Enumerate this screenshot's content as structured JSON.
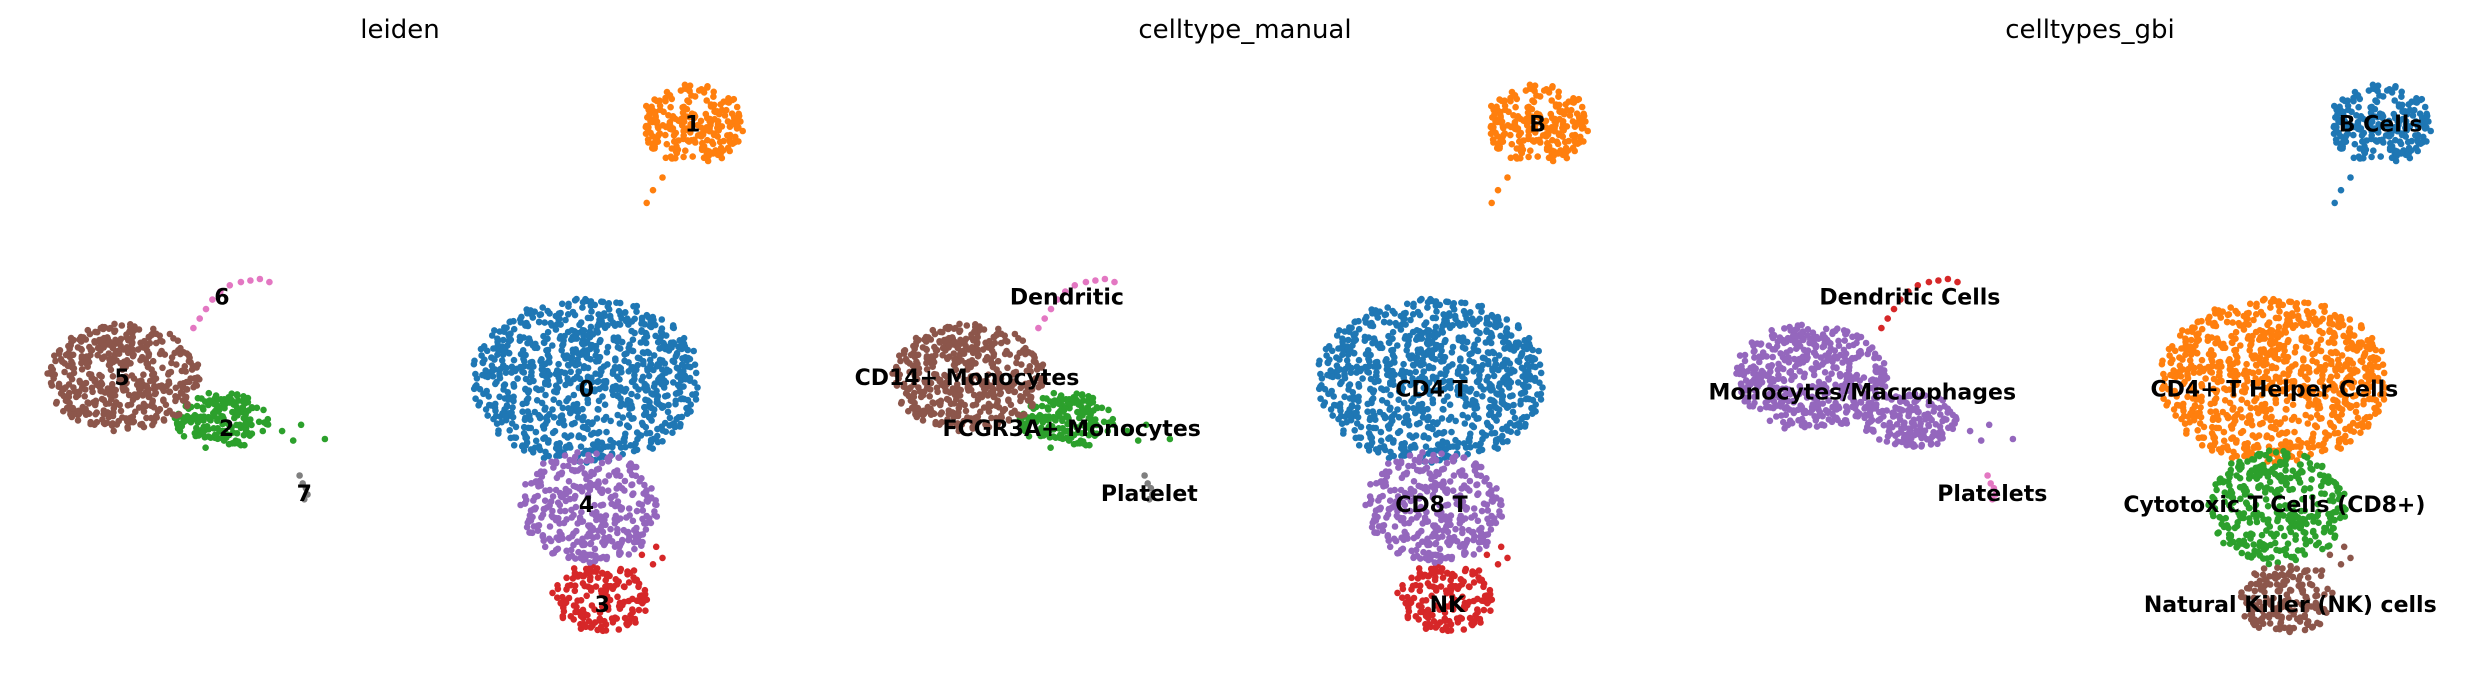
{
  "chart_data": [
    {
      "type": "scatter",
      "title": "leiden",
      "xlabel": "",
      "ylabel": "",
      "grid": false,
      "axes_visible": false,
      "clusters": [
        {
          "label": "0",
          "color": "#1f77b4",
          "label_pos": [
            370,
            245
          ],
          "blobs": [
            [
              370,
              240,
              72,
              52,
              900
            ]
          ],
          "outliers": []
        },
        {
          "label": "1",
          "color": "#ff7f0e",
          "label_pos": [
            437,
            78
          ],
          "blobs": [
            [
              437,
              78,
              32,
              25,
              230
            ]
          ],
          "outliers": [
            [
              424,
              100
            ],
            [
              418,
              112
            ],
            [
              412,
              120
            ],
            [
              408,
              128
            ]
          ]
        },
        {
          "label": "2",
          "color": "#2ca02c",
          "label_pos": [
            143,
            270
          ],
          "blobs": [
            [
              140,
              265,
              30,
              18,
              170
            ]
          ],
          "outliers": [
            [
              178,
              272
            ],
            [
              185,
              278
            ],
            [
              190,
              268
            ],
            [
              205,
              277
            ]
          ]
        },
        {
          "label": "3",
          "color": "#d62728",
          "label_pos": [
            380,
            381
          ],
          "blobs": [
            [
              378,
              378,
              30,
              22,
              170
            ]
          ],
          "outliers": [
            [
              405,
              350
            ],
            [
              412,
              356
            ],
            [
              418,
              352
            ],
            [
              400,
              360
            ],
            [
              414,
              345
            ]
          ]
        },
        {
          "label": "4",
          "color": "#9467bd",
          "label_pos": [
            370,
            318
          ],
          "blobs": [
            [
              372,
              320,
              43,
              36,
              350
            ]
          ],
          "outliers": []
        },
        {
          "label": "5",
          "color": "#8c564b",
          "label_pos": [
            77,
            238
          ],
          "blobs": [
            [
              78,
              238,
              48,
              34,
              460
            ]
          ],
          "outliers": []
        },
        {
          "label": "6",
          "color": "#e377c2",
          "label_pos": [
            140,
            187
          ],
          "blobs": [],
          "outliers": [
            [
              122,
              207
            ],
            [
              126,
              201
            ],
            [
              130,
              195
            ],
            [
              134,
              189
            ],
            [
              139,
              184
            ],
            [
              145,
              180
            ],
            [
              152,
              178
            ],
            [
              158,
              177
            ],
            [
              164,
              176
            ],
            [
              170,
              178
            ]
          ]
        },
        {
          "label": "7",
          "color": "#7f7f7f",
          "label_pos": [
            192,
            311
          ],
          "blobs": [],
          "outliers": [
            [
              189,
              300
            ],
            [
              191,
              305
            ],
            [
              193,
              308
            ],
            [
              194,
              312
            ],
            [
              192,
              315
            ]
          ]
        }
      ]
    },
    {
      "type": "scatter",
      "title": "celltype_manual",
      "xlabel": "",
      "ylabel": "",
      "grid": false,
      "axes_visible": false,
      "clusters": [
        {
          "label": "CD4 T",
          "color": "#1f77b4",
          "label_pos": [
            370,
            245
          ],
          "blobs": [
            [
              370,
              240,
              72,
              52,
              900
            ]
          ],
          "outliers": []
        },
        {
          "label": "B",
          "color": "#ff7f0e",
          "label_pos": [
            437,
            78
          ],
          "blobs": [
            [
              437,
              78,
              32,
              25,
              230
            ]
          ],
          "outliers": [
            [
              424,
              100
            ],
            [
              418,
              112
            ],
            [
              412,
              120
            ],
            [
              408,
              128
            ]
          ]
        },
        {
          "label": "FCGR3A+ Monocytes",
          "color": "#2ca02c",
          "label_pos": [
            143,
            270
          ],
          "blobs": [
            [
              140,
              265,
              30,
              18,
              170
            ]
          ],
          "outliers": [
            [
              178,
              272
            ],
            [
              185,
              278
            ],
            [
              190,
              268
            ],
            [
              205,
              277
            ]
          ]
        },
        {
          "label": "NK",
          "color": "#d62728",
          "label_pos": [
            380,
            381
          ],
          "blobs": [
            [
              378,
              378,
              30,
              22,
              170
            ]
          ],
          "outliers": [
            [
              405,
              350
            ],
            [
              412,
              356
            ],
            [
              418,
              352
            ],
            [
              400,
              360
            ],
            [
              414,
              345
            ]
          ]
        },
        {
          "label": "CD8 T",
          "color": "#9467bd",
          "label_pos": [
            370,
            318
          ],
          "blobs": [
            [
              372,
              320,
              43,
              36,
              350
            ]
          ],
          "outliers": []
        },
        {
          "label": "CD14+ Monocytes",
          "color": "#8c564b",
          "label_pos": [
            77,
            238
          ],
          "blobs": [
            [
              78,
              238,
              48,
              34,
              460
            ]
          ],
          "outliers": []
        },
        {
          "label": "Dendritic",
          "color": "#e377c2",
          "label_pos": [
            140,
            187
          ],
          "blobs": [],
          "outliers": [
            [
              122,
              207
            ],
            [
              126,
              201
            ],
            [
              130,
              195
            ],
            [
              134,
              189
            ],
            [
              139,
              184
            ],
            [
              145,
              180
            ],
            [
              152,
              178
            ],
            [
              158,
              177
            ],
            [
              164,
              176
            ],
            [
              170,
              178
            ]
          ]
        },
        {
          "label": "Platelet",
          "color": "#7f7f7f",
          "label_pos": [
            192,
            311
          ],
          "blobs": [],
          "outliers": [
            [
              189,
              300
            ],
            [
              191,
              305
            ],
            [
              193,
              308
            ],
            [
              194,
              312
            ],
            [
              192,
              315
            ]
          ]
        }
      ]
    },
    {
      "type": "scatter",
      "title": "celltypes_gbi",
      "xlabel": "",
      "ylabel": "",
      "grid": false,
      "axes_visible": false,
      "clusters": [
        {
          "label": "CD4+ T Helper Cells",
          "color": "#ff7f0e",
          "label_pos": [
            370,
            245
          ],
          "blobs": [
            [
              370,
              240,
              72,
              52,
              900
            ]
          ],
          "outliers": []
        },
        {
          "label": "B Cells",
          "color": "#1f77b4",
          "label_pos": [
            437,
            78
          ],
          "blobs": [
            [
              437,
              78,
              32,
              25,
              230
            ]
          ],
          "outliers": [
            [
              424,
              100
            ],
            [
              418,
              112
            ],
            [
              412,
              120
            ],
            [
              408,
              128
            ]
          ]
        },
        {
          "label": "Monocytes/Macrophages",
          "color": "#9467bd",
          "label_pos": [
            110,
            247
          ],
          "blobs": [
            [
              78,
              238,
              48,
              34,
              460
            ],
            [
              140,
              265,
              30,
              18,
              170
            ]
          ],
          "outliers": [
            [
              178,
              272
            ],
            [
              185,
              278
            ],
            [
              190,
              268
            ],
            [
              205,
              277
            ]
          ]
        },
        {
          "label": "Cytotoxic T Cells (CD8+)",
          "color": "#2ca02c",
          "label_pos": [
            370,
            318
          ],
          "blobs": [
            [
              372,
              320,
              43,
              36,
              350
            ]
          ],
          "outliers": []
        },
        {
          "label": "Natural Killer (NK) cells",
          "color": "#8c564b",
          "label_pos": [
            380,
            381
          ],
          "blobs": [
            [
              378,
              378,
              30,
              22,
              170
            ]
          ],
          "outliers": [
            [
              405,
              350
            ],
            [
              412,
              356
            ],
            [
              418,
              352
            ],
            [
              400,
              360
            ],
            [
              414,
              345
            ]
          ]
        },
        {
          "label": "Dendritic Cells",
          "color": "#d62728",
          "label_pos": [
            140,
            187
          ],
          "blobs": [],
          "outliers": [
            [
              122,
              207
            ],
            [
              126,
              201
            ],
            [
              130,
              195
            ],
            [
              134,
              189
            ],
            [
              139,
              184
            ],
            [
              145,
              180
            ],
            [
              152,
              178
            ],
            [
              158,
              177
            ],
            [
              164,
              176
            ],
            [
              170,
              178
            ]
          ]
        },
        {
          "label": "Platelets",
          "color": "#e377c2",
          "label_pos": [
            192,
            311
          ],
          "blobs": [],
          "outliers": [
            [
              189,
              300
            ],
            [
              191,
              305
            ],
            [
              193,
              308
            ],
            [
              194,
              312
            ],
            [
              192,
              315
            ]
          ]
        }
      ]
    }
  ]
}
